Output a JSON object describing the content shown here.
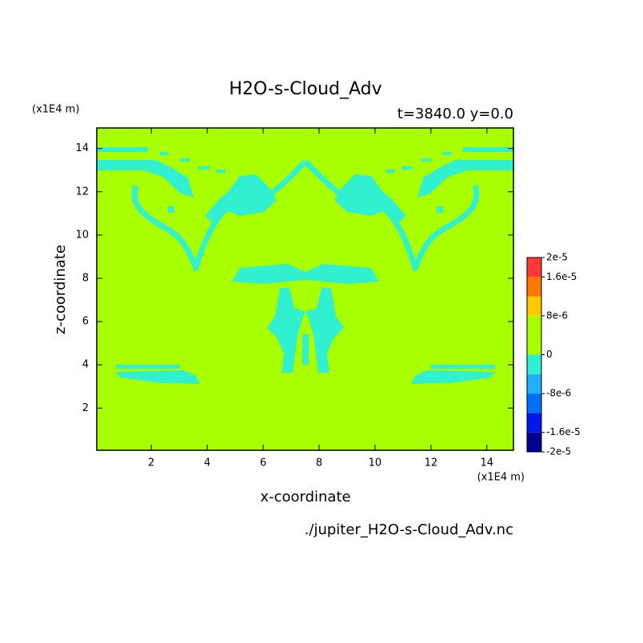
{
  "chart_data": {
    "type": "contour",
    "title": "H2O-s-Cloud_Adv",
    "subtitle": "t=3840.0 y=0.0",
    "x_label": "x-coordinate",
    "y_label": "z-coordinate",
    "x_unit": "(x1E4 m)",
    "y_unit": "(x1E4 m)",
    "source": "./jupiter_H2O-s-Cloud_Adv.nc",
    "xlim": [
      0.05,
      14.95
    ],
    "ylim": [
      0.05,
      14.95
    ],
    "xticks": [
      2,
      4,
      6,
      8,
      10,
      12,
      14
    ],
    "yticks": [
      2,
      4,
      6,
      8,
      10,
      12,
      14
    ],
    "levels": [
      -2e-05,
      -1.6e-05,
      -1.2e-05,
      -8e-06,
      -4e-06,
      0,
      4e-06,
      8e-06,
      1.2e-05,
      1.6e-05,
      2e-05
    ],
    "colors": [
      "#000090",
      "#0018e8",
      "#0070ff",
      "#20b0ff",
      "#30f0d0",
      "#a8ff00",
      "#a8ff00",
      "#ffc800",
      "#ff7800",
      "#ff3838"
    ],
    "colorbar_ticks": [
      {
        "value": 2e-05,
        "label": "2e-5"
      },
      {
        "value": 1.6e-05,
        "label": "1.6e-5"
      },
      {
        "value": 8e-06,
        "label": "8e-6"
      },
      {
        "value": 0,
        "label": "0"
      },
      {
        "value": -8e-06,
        "label": "-8e-6"
      },
      {
        "value": -1.6e-05,
        "label": "-1.6e-5"
      },
      {
        "value": -2e-05,
        "label": "-2e-5"
      }
    ]
  }
}
